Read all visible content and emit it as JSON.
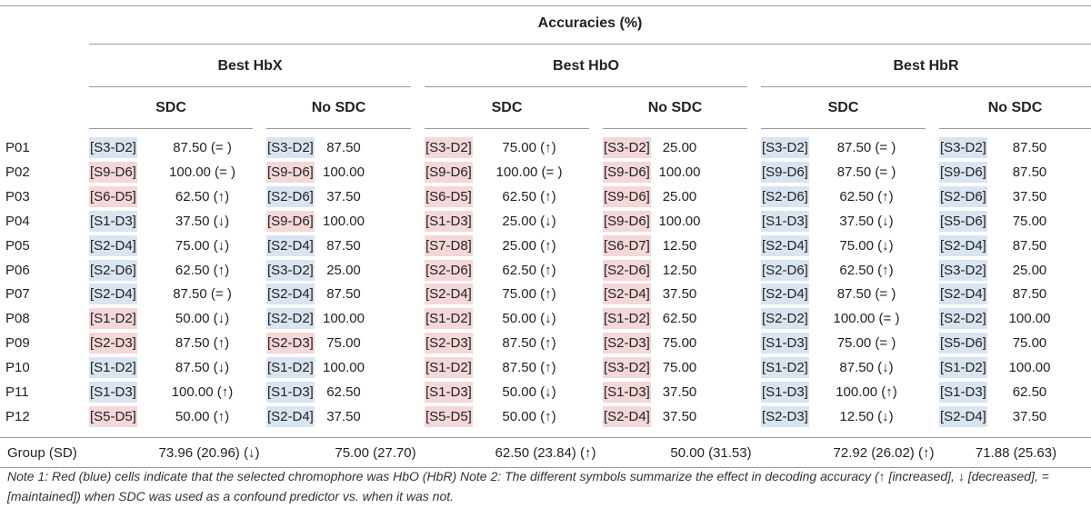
{
  "title": "Accuracies (%)",
  "groups": [
    "Best HbX",
    "Best HbO",
    "Best HbR"
  ],
  "subgroups": [
    "SDC",
    "No SDC",
    "SDC",
    "No SDC",
    "SDC",
    "No SDC"
  ],
  "colors": {
    "red": "#f4d7d8",
    "blue": "#d9e4f1",
    "rule": "#9a9a9a"
  },
  "rows": [
    {
      "label": "P01",
      "cells": [
        {
          "ch": "[S3-D2]",
          "color": "blue",
          "val": "87.50 (= )"
        },
        {
          "ch": "[S3-D2]",
          "color": "blue",
          "val": "87.50"
        },
        {
          "ch": "[S3-D2]",
          "color": "red",
          "val": "75.00 (↑)"
        },
        {
          "ch": "[S3-D2]",
          "color": "red",
          "val": "25.00"
        },
        {
          "ch": "[S3-D2]",
          "color": "blue",
          "val": "87.50 (= )"
        },
        {
          "ch": "[S3-D2]",
          "color": "blue",
          "val": "87.50"
        }
      ]
    },
    {
      "label": "P02",
      "cells": [
        {
          "ch": "[S9-D6]",
          "color": "red",
          "val": "100.00 (= )"
        },
        {
          "ch": "[S9-D6]",
          "color": "red",
          "val": "100.00"
        },
        {
          "ch": "[S9-D6]",
          "color": "red",
          "val": "100.00 (= )"
        },
        {
          "ch": "[S9-D6]",
          "color": "red",
          "val": "100.00"
        },
        {
          "ch": "[S9-D6]",
          "color": "blue",
          "val": "87.50 (= )"
        },
        {
          "ch": "[S9-D6]",
          "color": "blue",
          "val": "87.50"
        }
      ]
    },
    {
      "label": "P03",
      "cells": [
        {
          "ch": "[S6-D5]",
          "color": "red",
          "val": "62.50 (↑)"
        },
        {
          "ch": "[S2-D6]",
          "color": "blue",
          "val": "37.50"
        },
        {
          "ch": "[S6-D5]",
          "color": "red",
          "val": "62.50 (↑)"
        },
        {
          "ch": "[S9-D6]",
          "color": "red",
          "val": "25.00"
        },
        {
          "ch": "[S2-D6]",
          "color": "blue",
          "val": "62.50 (↑)"
        },
        {
          "ch": "[S2-D6]",
          "color": "blue",
          "val": "37.50"
        }
      ]
    },
    {
      "label": "P04",
      "cells": [
        {
          "ch": "[S1-D3]",
          "color": "blue",
          "val": "37.50 (↓)"
        },
        {
          "ch": "[S9-D6]",
          "color": "red",
          "val": "100.00"
        },
        {
          "ch": "[S1-D3]",
          "color": "red",
          "val": "25.00 (↓)"
        },
        {
          "ch": "[S9-D6]",
          "color": "red",
          "val": "100.00"
        },
        {
          "ch": "[S1-D3]",
          "color": "blue",
          "val": "37.50 (↓)"
        },
        {
          "ch": "[S5-D6]",
          "color": "blue",
          "val": "75.00"
        }
      ]
    },
    {
      "label": "P05",
      "cells": [
        {
          "ch": "[S2-D4]",
          "color": "blue",
          "val": "75.00 (↓)"
        },
        {
          "ch": "[S2-D4]",
          "color": "blue",
          "val": "87.50"
        },
        {
          "ch": "[S7-D8]",
          "color": "red",
          "val": "25.00 (↑)"
        },
        {
          "ch": "[S6-D7]",
          "color": "red",
          "val": "12.50"
        },
        {
          "ch": "[S2-D4]",
          "color": "blue",
          "val": "75.00 (↓)"
        },
        {
          "ch": "[S2-D4]",
          "color": "blue",
          "val": "87.50"
        }
      ]
    },
    {
      "label": "P06",
      "cells": [
        {
          "ch": "[S2-D6]",
          "color": "blue",
          "val": "62.50 (↑)"
        },
        {
          "ch": "[S3-D2]",
          "color": "blue",
          "val": "25.00"
        },
        {
          "ch": "[S2-D6]",
          "color": "red",
          "val": "62.50 (↑)"
        },
        {
          "ch": "[S2-D6]",
          "color": "red",
          "val": "12.50"
        },
        {
          "ch": "[S2-D6]",
          "color": "blue",
          "val": "62.50 (↑)"
        },
        {
          "ch": "[S3-D2]",
          "color": "blue",
          "val": "25.00"
        }
      ]
    },
    {
      "label": "P07",
      "cells": [
        {
          "ch": "[S2-D4]",
          "color": "blue",
          "val": "87.50 (= )"
        },
        {
          "ch": "[S2-D4]",
          "color": "blue",
          "val": "87.50"
        },
        {
          "ch": "[S2-D4]",
          "color": "red",
          "val": "75.00 (↑)"
        },
        {
          "ch": "[S2-D4]",
          "color": "red",
          "val": "37.50"
        },
        {
          "ch": "[S2-D4]",
          "color": "blue",
          "val": "87.50 (= )"
        },
        {
          "ch": "[S2-D4]",
          "color": "blue",
          "val": "87.50"
        }
      ]
    },
    {
      "label": "P08",
      "cells": [
        {
          "ch": "[S1-D2]",
          "color": "red",
          "val": "50.00 (↓)"
        },
        {
          "ch": "[S2-D2]",
          "color": "blue",
          "val": "100.00"
        },
        {
          "ch": "[S1-D2]",
          "color": "red",
          "val": "50.00 (↓)"
        },
        {
          "ch": "[S1-D2]",
          "color": "red",
          "val": "62.50"
        },
        {
          "ch": "[S2-D2]",
          "color": "blue",
          "val": "100.00 (= )"
        },
        {
          "ch": "[S2-D2]",
          "color": "blue",
          "val": "100.00"
        }
      ]
    },
    {
      "label": "P09",
      "cells": [
        {
          "ch": "[S2-D3]",
          "color": "red",
          "val": "87.50 (↑)"
        },
        {
          "ch": "[S2-D3]",
          "color": "red",
          "val": "75.00"
        },
        {
          "ch": "[S2-D3]",
          "color": "red",
          "val": "87.50 (↑)"
        },
        {
          "ch": "[S2-D3]",
          "color": "red",
          "val": "75.00"
        },
        {
          "ch": "[S1-D3]",
          "color": "blue",
          "val": "75.00 (= )"
        },
        {
          "ch": "[S5-D6]",
          "color": "blue",
          "val": "75.00"
        }
      ]
    },
    {
      "label": "P10",
      "cells": [
        {
          "ch": "[S1-D2]",
          "color": "blue",
          "val": "87.50 (↓)"
        },
        {
          "ch": "[S1-D2]",
          "color": "blue",
          "val": "100.00"
        },
        {
          "ch": "[S1-D2]",
          "color": "red",
          "val": "87.50 (↑)"
        },
        {
          "ch": "[S3-D2]",
          "color": "red",
          "val": "75.00"
        },
        {
          "ch": "[S1-D2]",
          "color": "blue",
          "val": "87.50 (↓)"
        },
        {
          "ch": "[S1-D2]",
          "color": "blue",
          "val": "100.00"
        }
      ]
    },
    {
      "label": "P11",
      "cells": [
        {
          "ch": "[S1-D3]",
          "color": "blue",
          "val": "100.00 (↑)"
        },
        {
          "ch": "[S1-D3]",
          "color": "blue",
          "val": "62.50"
        },
        {
          "ch": "[S1-D3]",
          "color": "red",
          "val": "50.00 (↓)"
        },
        {
          "ch": "[S1-D3]",
          "color": "red",
          "val": "37.50"
        },
        {
          "ch": "[S1-D3]",
          "color": "blue",
          "val": "100.00 (↑)"
        },
        {
          "ch": "[S1-D3]",
          "color": "blue",
          "val": "62.50"
        }
      ]
    },
    {
      "label": "P12",
      "cells": [
        {
          "ch": "[S5-D5]",
          "color": "red",
          "val": "50.00 (↑)"
        },
        {
          "ch": "[S2-D4]",
          "color": "blue",
          "val": "37.50"
        },
        {
          "ch": "[S5-D5]",
          "color": "red",
          "val": "50.00 (↑)"
        },
        {
          "ch": "[S2-D4]",
          "color": "red",
          "val": "37.50"
        },
        {
          "ch": "[S2-D3]",
          "color": "blue",
          "val": "12.50 (↓)"
        },
        {
          "ch": "[S2-D4]",
          "color": "blue",
          "val": "37.50"
        }
      ]
    }
  ],
  "group_row": {
    "label": "Group (SD)",
    "values": [
      "73.96 (20.96) (↓)",
      "75.00 (27.70)",
      "62.50 (23.84) (↑)",
      "50.00 (31.53)",
      "72.92 (26.02) (↑)",
      "71.88 (25.63)"
    ]
  },
  "note": "Note 1: Red (blue) cells indicate that the selected chromophore was HbO (HbR) Note 2: The different symbols summarize the effect in decoding accuracy (↑ [increased], ↓ [decreased], = [maintained]) when SDC was used as a confound predictor vs. when it was not."
}
